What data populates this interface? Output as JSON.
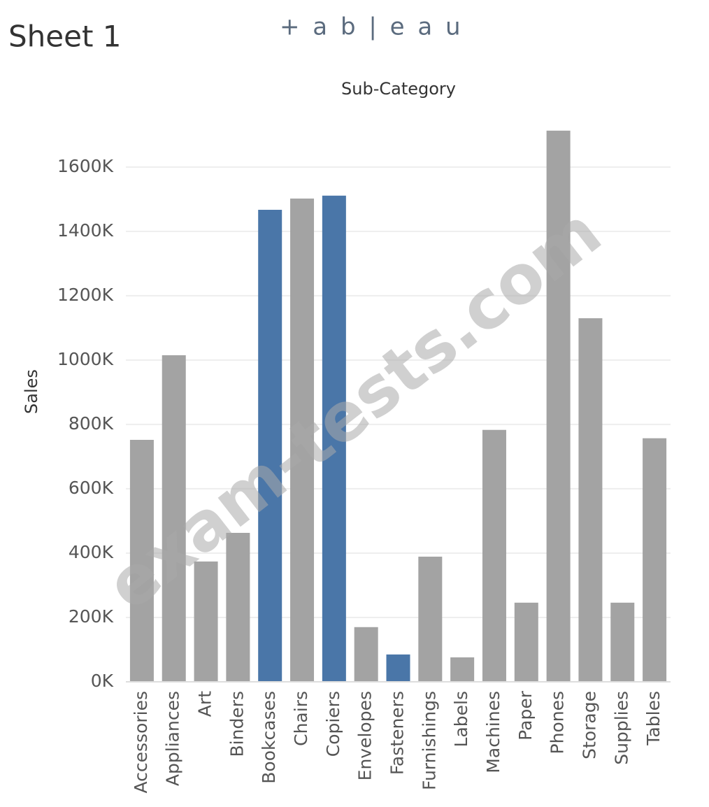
{
  "sheet_title": "Sheet 1",
  "logo": "+ a b | e a u",
  "watermark": "exam-tests.com",
  "chart_data": {
    "type": "bar",
    "title": "Sub-Category",
    "y_label": "Sales",
    "categories": [
      "Accessories",
      "Appliances",
      "Art",
      "Binders",
      "Bookcases",
      "Chairs",
      "Copiers",
      "Envelopes",
      "Fasteners",
      "Furnishings",
      "Labels",
      "Machines",
      "Paper",
      "Phones",
      "Storage",
      "Supplies",
      "Tables"
    ],
    "values": [
      752000,
      1015000,
      374000,
      463000,
      1467000,
      1502000,
      1511000,
      170000,
      85000,
      389000,
      76000,
      783000,
      246000,
      1713000,
      1130000,
      246000,
      757000
    ],
    "colors": [
      "#a3a3a3",
      "#a3a3a3",
      "#a3a3a3",
      "#a3a3a3",
      "#4a76a8",
      "#a3a3a3",
      "#4a76a8",
      "#a3a3a3",
      "#4a76a8",
      "#a3a3a3",
      "#a3a3a3",
      "#a3a3a3",
      "#a3a3a3",
      "#a3a3a3",
      "#a3a3a3",
      "#a3a3a3",
      "#a3a3a3"
    ],
    "ylim": [
      0,
      1780000
    ],
    "yticks": [
      {
        "value": 0,
        "label": "0K"
      },
      {
        "value": 200000,
        "label": "200K"
      },
      {
        "value": 400000,
        "label": "400K"
      },
      {
        "value": 600000,
        "label": "600K"
      },
      {
        "value": 800000,
        "label": "800K"
      },
      {
        "value": 1000000,
        "label": "1000K"
      },
      {
        "value": 1200000,
        "label": "1200K"
      },
      {
        "value": 1400000,
        "label": "1400K"
      },
      {
        "value": 1600000,
        "label": "1600K"
      }
    ],
    "grid": true
  }
}
